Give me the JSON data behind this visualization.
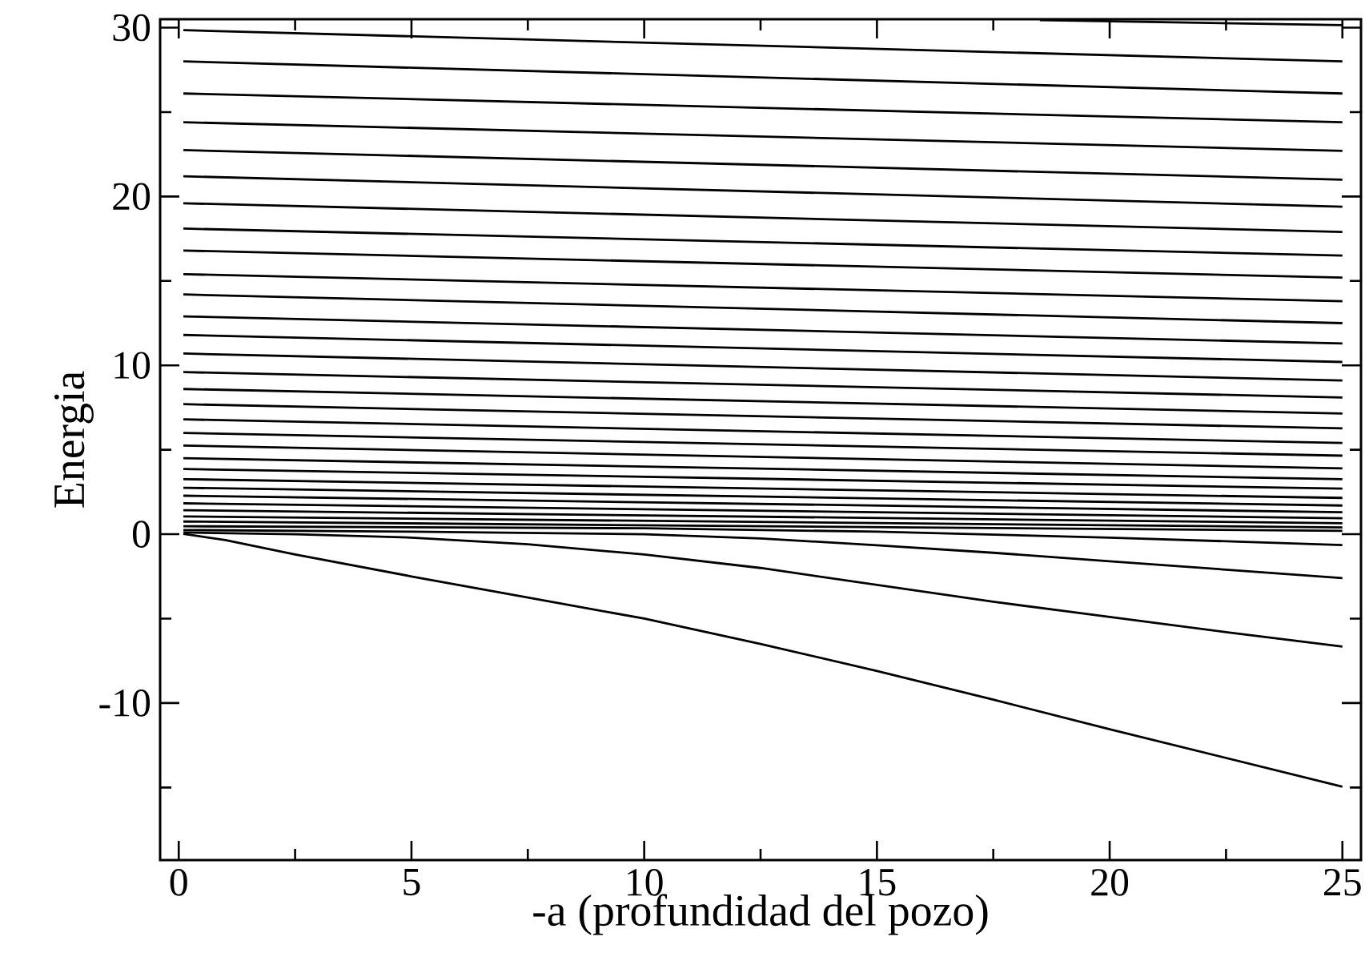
{
  "chart_data": {
    "type": "line",
    "xlabel": "-a (profundidad del pozo)",
    "ylabel": "Energia",
    "xlim": [
      -0.4,
      25.4
    ],
    "ylim": [
      -19.3,
      30.5
    ],
    "xticks": [
      0,
      {
        "value": 2.5,
        "label": null
      },
      5,
      {
        "value": 7.5,
        "label": null
      },
      10,
      {
        "value": 12.5,
        "label": null
      },
      15,
      {
        "value": 17.5,
        "label": null
      },
      20,
      {
        "value": 22.5,
        "label": null
      },
      25
    ],
    "yticks": [
      {
        "value": -15,
        "label": null
      },
      -10,
      {
        "value": -5,
        "label": null
      },
      0,
      {
        "value": 5,
        "label": null
      },
      10,
      {
        "value": 15,
        "label": null
      },
      20,
      {
        "value": 25,
        "label": null
      },
      30
    ],
    "series": [
      {
        "color": "#000000",
        "x": [
          18.5,
          25
        ],
        "values": [
          30.45,
          30.15
        ]
      },
      {
        "color": "#000000",
        "x": [
          0.1,
          25
        ],
        "values": [
          29.85,
          28.0
        ]
      },
      {
        "color": "#000000",
        "x": [
          0.1,
          25
        ],
        "values": [
          28.0,
          26.1
        ]
      },
      {
        "color": "#000000",
        "x": [
          0.1,
          25
        ],
        "values": [
          26.1,
          24.4
        ]
      },
      {
        "color": "#000000",
        "x": [
          0.1,
          25
        ],
        "values": [
          24.4,
          22.7
        ]
      },
      {
        "color": "#000000",
        "x": [
          0.1,
          25
        ],
        "values": [
          22.75,
          21.0
        ]
      },
      {
        "color": "#000000",
        "x": [
          0.1,
          25
        ],
        "values": [
          21.2,
          19.4
        ]
      },
      {
        "color": "#000000",
        "x": [
          0.1,
          25
        ],
        "values": [
          19.6,
          17.9
        ]
      },
      {
        "color": "#000000",
        "x": [
          0.1,
          25
        ],
        "values": [
          18.1,
          16.5
        ]
      },
      {
        "color": "#000000",
        "x": [
          0.1,
          25
        ],
        "values": [
          16.8,
          15.2
        ]
      },
      {
        "color": "#000000",
        "x": [
          0.1,
          25
        ],
        "values": [
          15.4,
          13.8
        ]
      },
      {
        "color": "#000000",
        "x": [
          0.1,
          25
        ],
        "values": [
          14.2,
          12.5
        ]
      },
      {
        "color": "#000000",
        "x": [
          0.1,
          25
        ],
        "values": [
          12.9,
          11.3
        ]
      },
      {
        "color": "#000000",
        "x": [
          0.1,
          25
        ],
        "values": [
          11.8,
          10.2
        ]
      },
      {
        "color": "#000000",
        "x": [
          0.1,
          25
        ],
        "values": [
          10.7,
          9.1
        ]
      },
      {
        "color": "#000000",
        "x": [
          0.1,
          25
        ],
        "values": [
          9.6,
          8.1
        ]
      },
      {
        "color": "#000000",
        "x": [
          0.1,
          25
        ],
        "values": [
          8.6,
          7.15
        ]
      },
      {
        "color": "#000000",
        "x": [
          0.1,
          25
        ],
        "values": [
          7.7,
          6.27
        ]
      },
      {
        "color": "#000000",
        "x": [
          0.1,
          25
        ],
        "values": [
          6.8,
          5.4
        ]
      },
      {
        "color": "#000000",
        "x": [
          0.1,
          25
        ],
        "values": [
          6.0,
          4.65
        ]
      },
      {
        "color": "#000000",
        "x": [
          0.1,
          25
        ],
        "values": [
          5.25,
          3.9
        ]
      },
      {
        "color": "#000000",
        "x": [
          0.1,
          25
        ],
        "values": [
          4.5,
          3.26
        ]
      },
      {
        "color": "#000000",
        "x": [
          0.1,
          25
        ],
        "values": [
          3.86,
          2.7
        ]
      },
      {
        "color": "#000000",
        "x": [
          0.1,
          25
        ],
        "values": [
          3.26,
          2.15
        ]
      },
      {
        "color": "#000000",
        "x": [
          0.1,
          25
        ],
        "values": [
          2.75,
          1.7
        ]
      },
      {
        "color": "#000000",
        "x": [
          0.1,
          25
        ],
        "values": [
          2.28,
          1.3
        ]
      },
      {
        "color": "#000000",
        "x": [
          0.1,
          25
        ],
        "values": [
          1.83,
          0.95
        ]
      },
      {
        "color": "#000000",
        "x": [
          0.1,
          25
        ],
        "values": [
          1.42,
          0.65
        ]
      },
      {
        "color": "#000000",
        "x": [
          0.1,
          25
        ],
        "values": [
          1.05,
          0.4
        ]
      },
      {
        "color": "#000000",
        "x": [
          0.1,
          25
        ],
        "values": [
          0.75,
          0.2
        ]
      },
      {
        "color": "#000000",
        "x": [
          0.1,
          10,
          15,
          20,
          25
        ],
        "values": [
          0.47,
          0.35,
          0.15,
          -0.2,
          -0.64
        ]
      },
      {
        "color": "#000000",
        "x": [
          0.1,
          5,
          10,
          12.5,
          15,
          17.5,
          20,
          22.5,
          25
        ],
        "values": [
          0.25,
          0.15,
          0.0,
          -0.25,
          -0.65,
          -1.1,
          -1.6,
          -2.1,
          -2.6
        ]
      },
      {
        "color": "#000000",
        "x": [
          0.1,
          2.5,
          5,
          7.5,
          10,
          12.5,
          15,
          17.5,
          20,
          22.5,
          25
        ],
        "values": [
          0.1,
          0.0,
          -0.2,
          -0.6,
          -1.2,
          -2.0,
          -3.0,
          -4.0,
          -4.9,
          -5.8,
          -6.65
        ]
      },
      {
        "color": "#000000",
        "x": [
          0.1,
          1,
          2.5,
          5,
          7.5,
          10,
          12.5,
          15,
          17.5,
          20,
          22.5,
          25
        ],
        "values": [
          0.02,
          -0.35,
          -1.2,
          -2.5,
          -3.75,
          -5.0,
          -6.5,
          -8.1,
          -9.8,
          -11.55,
          -13.25,
          -14.95
        ]
      }
    ]
  }
}
